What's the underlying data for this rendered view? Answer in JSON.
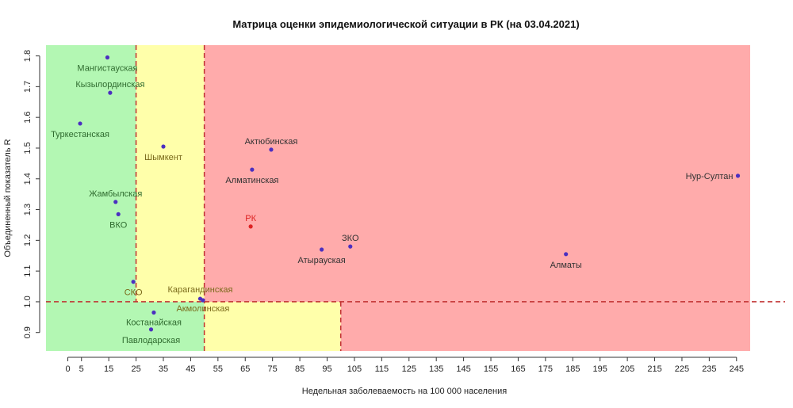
{
  "chart_data": {
    "type": "scatter",
    "title": "Матрица оценки эпидемиологической ситуации в РК (на 03.04.2021)",
    "xlabel": "Недельная заболеваемость на 100 000 населения",
    "ylabel": "Объединенный показатель R",
    "xlim": [
      -8,
      250
    ],
    "ylim": [
      0.84,
      1.835
    ],
    "x_ticks": [
      0,
      5,
      15,
      25,
      35,
      45,
      55,
      65,
      75,
      85,
      95,
      105,
      115,
      125,
      135,
      145,
      155,
      165,
      175,
      185,
      195,
      205,
      215,
      225,
      235,
      245
    ],
    "y_ticks": [
      0.9,
      1.0,
      1.1,
      1.2,
      1.3,
      1.4,
      1.5,
      1.6,
      1.7,
      1.8
    ],
    "grid": false,
    "legend": "none",
    "thresholds": {
      "x": [
        25,
        50,
        100
      ],
      "y": 1.0
    },
    "zone_colors": {
      "green": "#b3f7b3",
      "yellow": "#ffffaa",
      "red": "#ffabab",
      "line": "#c03030"
    },
    "point_colors": {
      "region": "#4b2fc0",
      "country": "#dd2222",
      "label_green": "#2f6b2f",
      "label_yellow": "#7a6a1a",
      "label_red": "#333333"
    },
    "points": [
      {
        "name": "Мангистауская",
        "x": 14.5,
        "y": 1.795,
        "zone": "green",
        "anchor": "middle",
        "dx": 0,
        "dy": 17
      },
      {
        "name": "Кызылординская",
        "x": 15.5,
        "y": 1.68,
        "zone": "green",
        "anchor": "middle",
        "dx": 0,
        "dy": -7
      },
      {
        "name": "Туркестанская",
        "x": 4.5,
        "y": 1.58,
        "zone": "green",
        "anchor": "middle",
        "dx": 0,
        "dy": 17
      },
      {
        "name": "Шымкент",
        "x": 35,
        "y": 1.505,
        "zone": "yellow",
        "anchor": "middle",
        "dx": 0,
        "dy": 17
      },
      {
        "name": "Жамбылская",
        "x": 17.5,
        "y": 1.325,
        "zone": "green",
        "anchor": "middle",
        "dx": 0,
        "dy": -7
      },
      {
        "name": "ВКО",
        "x": 18.5,
        "y": 1.285,
        "zone": "green",
        "anchor": "middle",
        "dx": 0,
        "dy": 17
      },
      {
        "name": "СКО",
        "x": 24,
        "y": 1.065,
        "zone": "yellow",
        "anchor": "middle",
        "dx": 0,
        "dy": 17
      },
      {
        "name": "Карагандинская",
        "x": 48.5,
        "y": 1.01,
        "zone": "yellow",
        "anchor": "middle",
        "dx": 0,
        "dy": -8
      },
      {
        "name": "Акмолинская",
        "x": 49.5,
        "y": 1.005,
        "zone": "yellow",
        "anchor": "middle",
        "dx": 0,
        "dy": 14
      },
      {
        "name": "Костанайская",
        "x": 31.5,
        "y": 0.965,
        "zone": "green",
        "anchor": "middle",
        "dx": 0,
        "dy": 16
      },
      {
        "name": "Павлодарская",
        "x": 30.5,
        "y": 0.91,
        "zone": "green",
        "anchor": "middle",
        "dx": 0,
        "dy": 17
      },
      {
        "name": "Актюбинская",
        "x": 74.5,
        "y": 1.495,
        "zone": "red",
        "anchor": "middle",
        "dx": 0,
        "dy": -7
      },
      {
        "name": "Алматинская",
        "x": 67.5,
        "y": 1.43,
        "zone": "red",
        "anchor": "middle",
        "dx": 0,
        "dy": 17
      },
      {
        "name": "РК",
        "x": 67,
        "y": 1.245,
        "zone": "country",
        "anchor": "middle",
        "dx": 0,
        "dy": -7
      },
      {
        "name": "ЗКО",
        "x": 103.5,
        "y": 1.18,
        "zone": "red",
        "anchor": "middle",
        "dx": 0,
        "dy": -7
      },
      {
        "name": "Атырауская",
        "x": 93,
        "y": 1.17,
        "zone": "red",
        "anchor": "middle",
        "dx": 0,
        "dy": 17
      },
      {
        "name": "Алматы",
        "x": 182.5,
        "y": 1.155,
        "zone": "red",
        "anchor": "middle",
        "dx": 0,
        "dy": 17
      },
      {
        "name": "Нур-Султан",
        "x": 245.5,
        "y": 1.41,
        "zone": "red",
        "anchor": "end",
        "dx": -6,
        "dy": 4
      }
    ]
  }
}
